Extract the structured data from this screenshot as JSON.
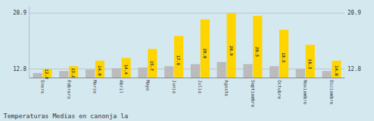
{
  "chart_data": {
    "type": "bar",
    "title": "Temperaturas Medias en canonja la",
    "categories": [
      "Enero",
      "Febrero",
      "Marzo",
      "Abril",
      "Mayo",
      "Junio",
      "Julio",
      "Agosto",
      "Septiembre",
      "Octubre",
      "Noviembre",
      "Diciembre"
    ],
    "series": [
      {
        "color": "#BBBBBB",
        "values": [
          12.2,
          12.5,
          12.7,
          12.9,
          13.0,
          13.2,
          13.5,
          13.8,
          13.5,
          13.2,
          12.8,
          12.5
        ]
      },
      {
        "color": "#FFD500",
        "values": [
          12.8,
          13.2,
          14.0,
          14.4,
          15.7,
          17.6,
          20.0,
          20.9,
          20.5,
          18.5,
          16.3,
          14.0
        ],
        "value_labels": [
          "12.8",
          "13.2",
          "14.0",
          "14.4",
          "15.7",
          "17.6",
          "20.0",
          "20.9",
          "20.5",
          "18.5",
          "16.3",
          "14.0"
        ],
        "data_labels": true
      }
    ],
    "ylim": [
      11.5,
      21.8
    ],
    "yticks": [
      12.8,
      20.9
    ],
    "y2lim": [
      11.5,
      21.8
    ],
    "y2ticks": [
      12.8,
      20.9
    ],
    "grid": true
  }
}
